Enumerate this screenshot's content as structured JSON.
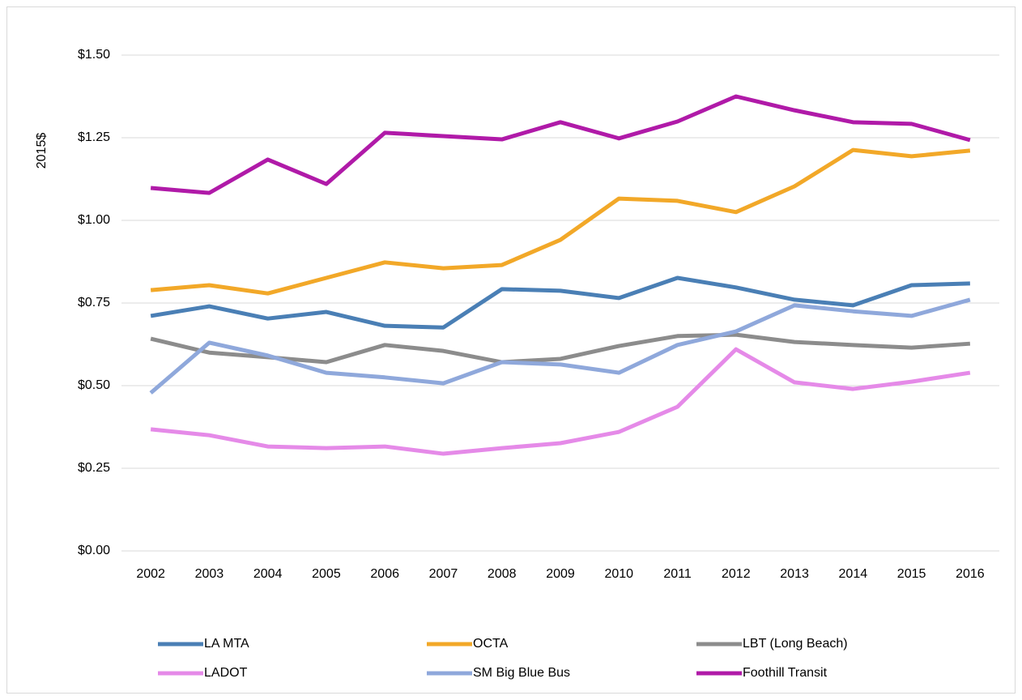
{
  "chart_data": {
    "type": "line",
    "ylabel": "2015$",
    "categories": [
      "2002",
      "2003",
      "2004",
      "2005",
      "2006",
      "2007",
      "2008",
      "2009",
      "2010",
      "2011",
      "2012",
      "2013",
      "2014",
      "2015",
      "2016"
    ],
    "series": [
      {
        "name": "LA MTA",
        "color": "#4a7fb5",
        "values": [
          0.711,
          0.74,
          0.703,
          0.723,
          0.681,
          0.676,
          0.792,
          0.787,
          0.765,
          0.826,
          0.797,
          0.76,
          0.743,
          0.804,
          0.809
        ]
      },
      {
        "name": "OCTA",
        "color": "#f2a828",
        "values": [
          0.789,
          0.804,
          0.779,
          0.826,
          0.873,
          0.855,
          0.865,
          0.941,
          1.066,
          1.059,
          1.025,
          1.103,
          1.213,
          1.194,
          1.211
        ]
      },
      {
        "name": "LBT (Long Beach)",
        "color": "#8c8c8c",
        "values": [
          0.642,
          0.6,
          0.586,
          0.571,
          0.623,
          0.605,
          0.571,
          0.581,
          0.62,
          0.65,
          0.654,
          0.632,
          0.623,
          0.615,
          0.627
        ]
      },
      {
        "name": "LADOT",
        "color": "#e58ae8",
        "values": [
          0.368,
          0.35,
          0.316,
          0.311,
          0.316,
          0.294,
          0.311,
          0.326,
          0.36,
          0.436,
          0.61,
          0.51,
          0.49,
          0.512,
          0.539
        ]
      },
      {
        "name": "SM Big Blue Bus",
        "color": "#8fa8db",
        "values": [
          0.478,
          0.63,
          0.591,
          0.539,
          0.525,
          0.507,
          0.571,
          0.564,
          0.539,
          0.623,
          0.664,
          0.743,
          0.725,
          0.711,
          0.76
        ]
      },
      {
        "name": "Foothill Transit",
        "color": "#b01aa8",
        "values": [
          1.098,
          1.083,
          1.184,
          1.11,
          1.265,
          1.255,
          1.245,
          1.297,
          1.248,
          1.299,
          1.375,
          1.333,
          1.297,
          1.292,
          1.243
        ]
      }
    ],
    "ylim": [
      0,
      1.5
    ],
    "yticks": [
      {
        "value": 0,
        "label": "$0.00"
      },
      {
        "value": 0.25,
        "label": "$0.25"
      },
      {
        "value": 0.5,
        "label": "$0.50"
      },
      {
        "value": 0.75,
        "label": "$0.75"
      },
      {
        "value": 1,
        "label": "$1.00"
      },
      {
        "value": 1.25,
        "label": "$1.25"
      },
      {
        "value": 1.5,
        "label": "$1.50"
      }
    ],
    "grid": true,
    "legend": "bottom"
  }
}
